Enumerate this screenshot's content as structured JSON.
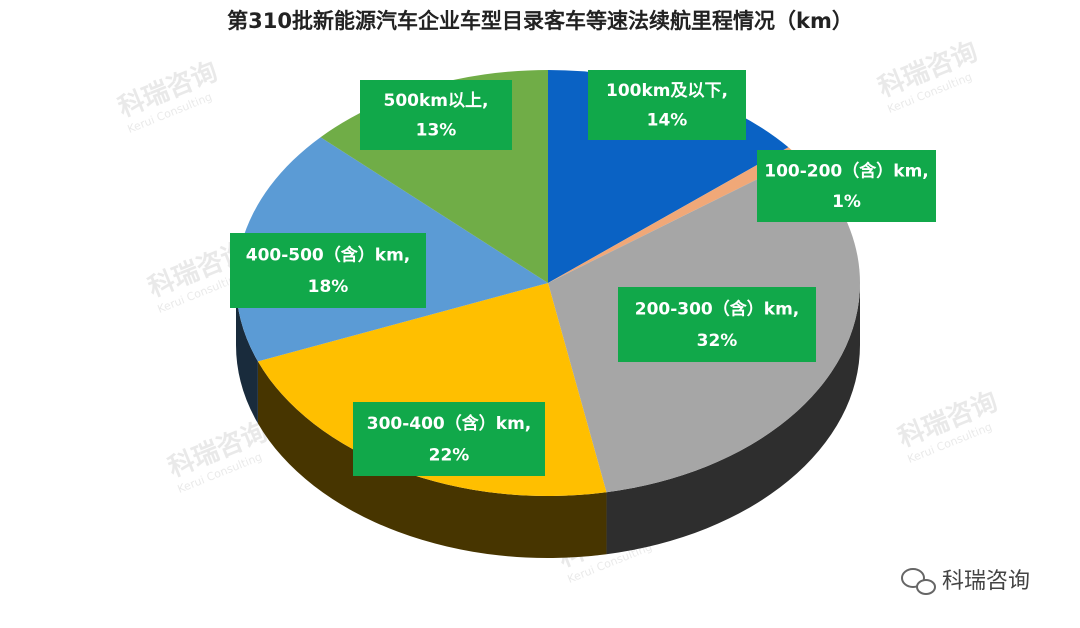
{
  "chart_data": {
    "type": "pie3d",
    "title": "第310批新能源汽车企业车型目录客车等速法续航里程情况（km）",
    "categories": [
      "100km及以下,",
      "100-200（含）km,",
      "200-300（含）km,",
      "300-400（含）km,",
      "400-500（含）km,",
      "500km以上,"
    ],
    "values": [
      14,
      1,
      32,
      22,
      18,
      13
    ],
    "value_labels": [
      "14%",
      "1%",
      "32%",
      "22%",
      "18%",
      "13%"
    ],
    "colors": [
      "#0a62c4",
      "#f0a878",
      "#a6a6a6",
      "#ffbf00",
      "#5b9bd5",
      "#70ad47"
    ],
    "label_color": "#11a84a",
    "watermark": "科瑞咨询",
    "watermark_sub": "Kerui Consulting",
    "source": "科瑞咨询"
  }
}
